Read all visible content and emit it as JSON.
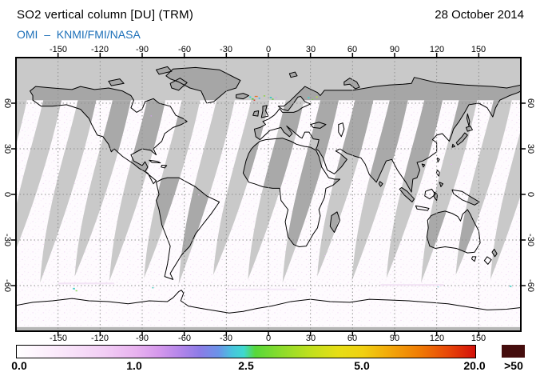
{
  "header": {
    "title": "SO2 vertical column [DU] (TRM)",
    "subtitle": "OMI  –  KNMI/FMI/NASA",
    "date": "28 October 2014"
  },
  "axes": {
    "lon": [
      "-150",
      "-120",
      "-90",
      "-60",
      "-30",
      "0",
      "30",
      "60",
      "90",
      "120",
      "150"
    ],
    "lat": [
      "60",
      "30",
      "0",
      "-30",
      "-60"
    ]
  },
  "colorbar": {
    "labels": [
      "0.0",
      "1.0",
      "2.5",
      "5.0",
      "20.0",
      ">50"
    ],
    "overflow_color": "#450d0d"
  },
  "colors": {
    "subtitle_blue": "#1c6fb8",
    "no_data_gray": "#c9c9c9",
    "no_data_land_gray": "#a6a6a6",
    "background_field": "#fefbfe",
    "coastline": "#000000",
    "gridline": "#8f8f8f"
  },
  "chart_data": {
    "type": "heatmap",
    "title": "SO2 vertical column [DU] (TRM)",
    "instrument": "OMI",
    "institutions": "KNMI/FMI/NASA",
    "date": "28 October 2014",
    "units": "DU",
    "projection": "equirectangular world map",
    "lon_range": [
      -180,
      180
    ],
    "lat_range": [
      -90,
      90
    ],
    "lon_ticks": [
      -150,
      -120,
      -90,
      -60,
      -30,
      0,
      30,
      60,
      90,
      120,
      150
    ],
    "lat_ticks": [
      60,
      30,
      0,
      -30,
      -60
    ],
    "grid": true,
    "colorbar": {
      "orientation": "horizontal",
      "scale": "nonlinear",
      "tick_values": [
        0.0,
        1.0,
        2.5,
        5.0,
        20.0
      ],
      "overflow_label": ">50",
      "stops": [
        {
          "value": 0.0,
          "color": "#ffffff"
        },
        {
          "value": 1.0,
          "color": "#e8b2ef"
        },
        {
          "value": 2.5,
          "color": "#57d83a"
        },
        {
          "value": 5.0,
          "color": "#f0d010"
        },
        {
          "value": 20.0,
          "color": "#d31009"
        }
      ],
      "overflow_color": "#450d0d"
    },
    "features": [
      "solid gray no-data band north of about 62N (polar darkness)",
      "about 15 gray inter-orbit gap swaths slanting toward the southwest, tapering out near 60S",
      "background SO2 field near 0 DU rendered as white to pale pink speckle",
      "cluster of elevated SO2 pixels (cyan/green/orange/red) near Iceland and northern Scandinavia",
      "scattered cyan-green pixels along the Southern Ocean near 60S",
      "narrow gray no-data strip along the southern map edge"
    ]
  }
}
